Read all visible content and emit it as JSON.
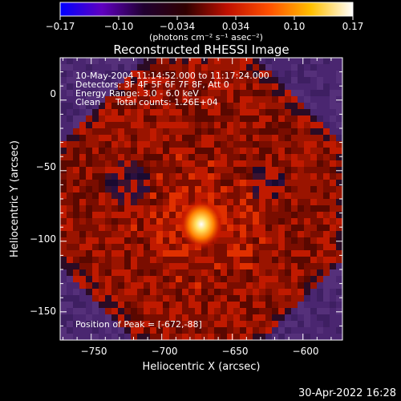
{
  "title": "Reconstructed RHESSI Image",
  "colorbar": {
    "tick_labels": [
      "−0.17",
      "−0.10",
      "−0.034",
      "0.034",
      "0.10",
      "0.17"
    ],
    "unit_label": "(photons cm⁻² s⁻¹ asec⁻²)",
    "colors": [
      "#0000ff",
      "#6000c0",
      "#200030",
      "#300000",
      "#c01000",
      "#ff5000",
      "#ffc000",
      "#ffffff"
    ]
  },
  "annotations": {
    "time_range": "10-May-2004 11:14:52.000 to 11:17:24.000",
    "detectors": "Detectors: 3F 4F 5F 6F 7F 8F, Att 0",
    "energy": "Energy Range: 3.0 - 6.0 keV",
    "method": "Clean",
    "counts": "Total counts: 1.26E+04",
    "peak": "Position of Peak = [-672,-88]"
  },
  "axes": {
    "xlabel": "Heliocentric X (arcsec)",
    "ylabel": "Heliocentric Y (arcsec)",
    "x_ticks": [
      "−750",
      "−700",
      "−650",
      "−600"
    ],
    "y_ticks": [
      "0",
      "−50",
      "−100",
      "−150"
    ],
    "x_values": [
      -750,
      -700,
      -650,
      -600
    ],
    "y_values": [
      0,
      -50,
      -100,
      -150
    ],
    "xlim": [
      -772,
      -572
    ],
    "ylim": [
      -170,
      30
    ]
  },
  "image": {
    "peak_position": [
      -672,
      -88
    ],
    "background_color": "#4a2670",
    "fill_color": "#7a0d00",
    "hot_color": "#ffe080"
  },
  "footer": "30-Apr-2022 16:28"
}
